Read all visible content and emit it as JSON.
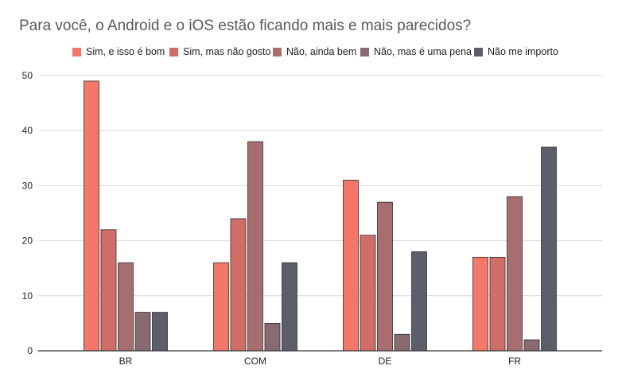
{
  "chart_data": {
    "type": "bar",
    "title": "Para você, o Android e o iOS estão ficando mais e mais parecidos?",
    "categories": [
      "BR",
      "COM",
      "DE",
      "FR"
    ],
    "series": [
      {
        "name": "Sim, e isso é bom",
        "color": "#f4776a",
        "values": [
          49,
          16,
          31,
          17
        ]
      },
      {
        "name": "Sim, mas não gosto",
        "color": "#d06d67",
        "values": [
          22,
          24,
          21,
          17
        ]
      },
      {
        "name": "Não, ainda bem",
        "color": "#a86e6f",
        "values": [
          16,
          38,
          27,
          28
        ]
      },
      {
        "name": "Não, mas é uma pena",
        "color": "#876a72",
        "values": [
          7,
          5,
          3,
          2
        ]
      },
      {
        "name": "Não me importo",
        "color": "#5c5f6a",
        "values": [
          7,
          16,
          18,
          37
        ]
      }
    ],
    "ylim": [
      0,
      50
    ],
    "yticks": [
      0,
      10,
      20,
      30,
      40,
      50
    ],
    "grid": true,
    "legend_position": "top"
  }
}
